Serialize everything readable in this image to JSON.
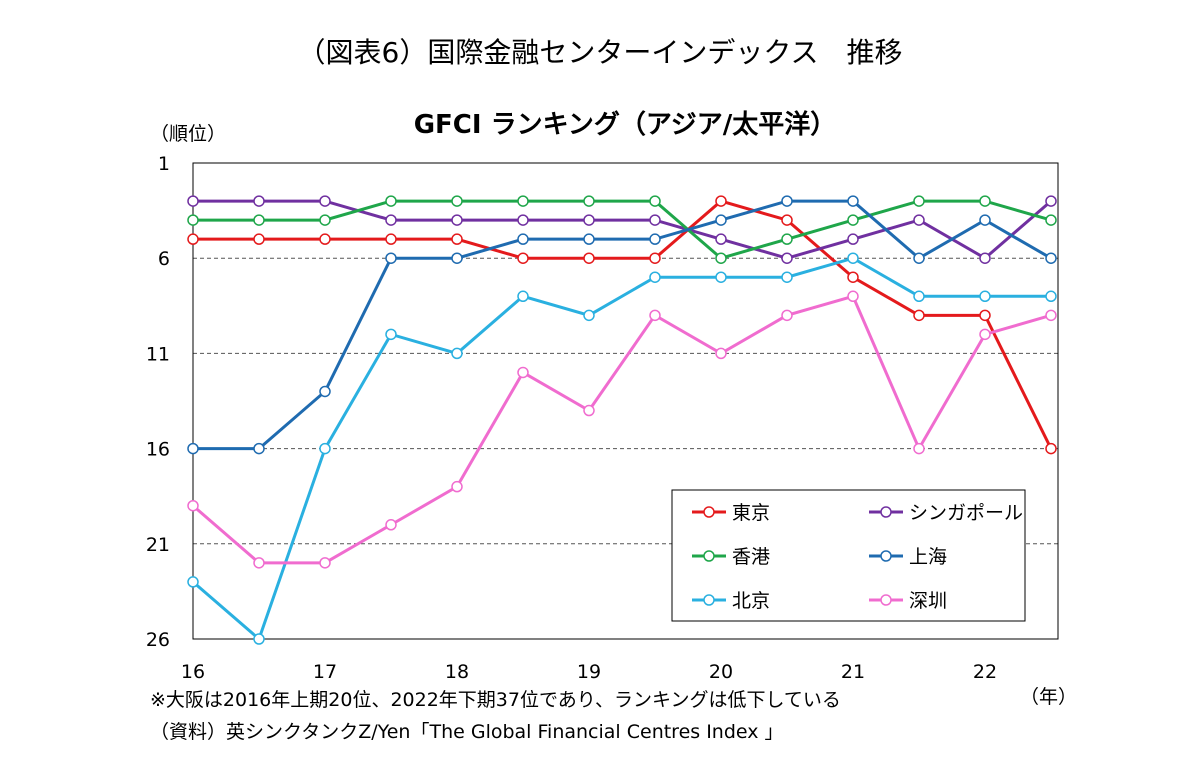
{
  "figure_title": "（図表6）国際金融センターインデックス　推移",
  "chart_data": {
    "type": "line",
    "title": "GFCI ランキング（アジア/太平洋）",
    "ylabel": "（順位）",
    "xlabel": "（年）",
    "y_inverted": true,
    "ylim": [
      1,
      26
    ],
    "yticks": [
      "1",
      "6",
      "11",
      "16",
      "21",
      "26"
    ],
    "xlim": [
      16,
      22.5
    ],
    "xticks": [
      "16",
      "17",
      "18",
      "19",
      "20",
      "21",
      "22"
    ],
    "grid": "horizontal dashed",
    "legend_position": "bottom-right",
    "x": [
      16,
      16.5,
      17,
      17.5,
      18,
      18.5,
      19,
      19.5,
      20,
      20.5,
      21,
      21.5,
      22,
      22.5
    ],
    "series": [
      {
        "name": "東京",
        "color": "#e41a1c",
        "values": [
          5,
          5,
          5,
          5,
          5,
          6,
          6,
          6,
          3,
          4,
          7,
          9,
          9,
          16
        ]
      },
      {
        "name": "シンガポール",
        "color": "#7030a0",
        "values": [
          3,
          3,
          3,
          4,
          4,
          4,
          4,
          4,
          5,
          6,
          5,
          4,
          6,
          3
        ]
      },
      {
        "name": "香港",
        "color": "#1fa64a",
        "values": [
          4,
          4,
          4,
          3,
          3,
          3,
          3,
          3,
          6,
          5,
          4,
          3,
          3,
          4
        ]
      },
      {
        "name": "上海",
        "color": "#1f6bb0",
        "values": [
          16,
          16,
          13,
          6,
          6,
          5,
          5,
          5,
          4,
          3,
          3,
          6,
          4,
          6
        ]
      },
      {
        "name": "北京",
        "color": "#2ab0e0",
        "values": [
          23,
          26,
          16,
          10,
          11,
          8,
          9,
          7,
          7,
          7,
          6,
          8,
          8,
          8
        ]
      },
      {
        "name": "深圳",
        "color": "#f06ccf",
        "values": [
          19,
          22,
          22,
          20,
          18,
          12,
          14,
          9,
          11,
          9,
          8,
          16,
          10,
          9
        ]
      }
    ]
  },
  "notes": [
    "※大阪は2016年上期20位、2022年下期37位であり、ランキングは低下している",
    "（資料）英シンクタンクZ/Yen「The Global Financial Centres Index 」"
  ]
}
